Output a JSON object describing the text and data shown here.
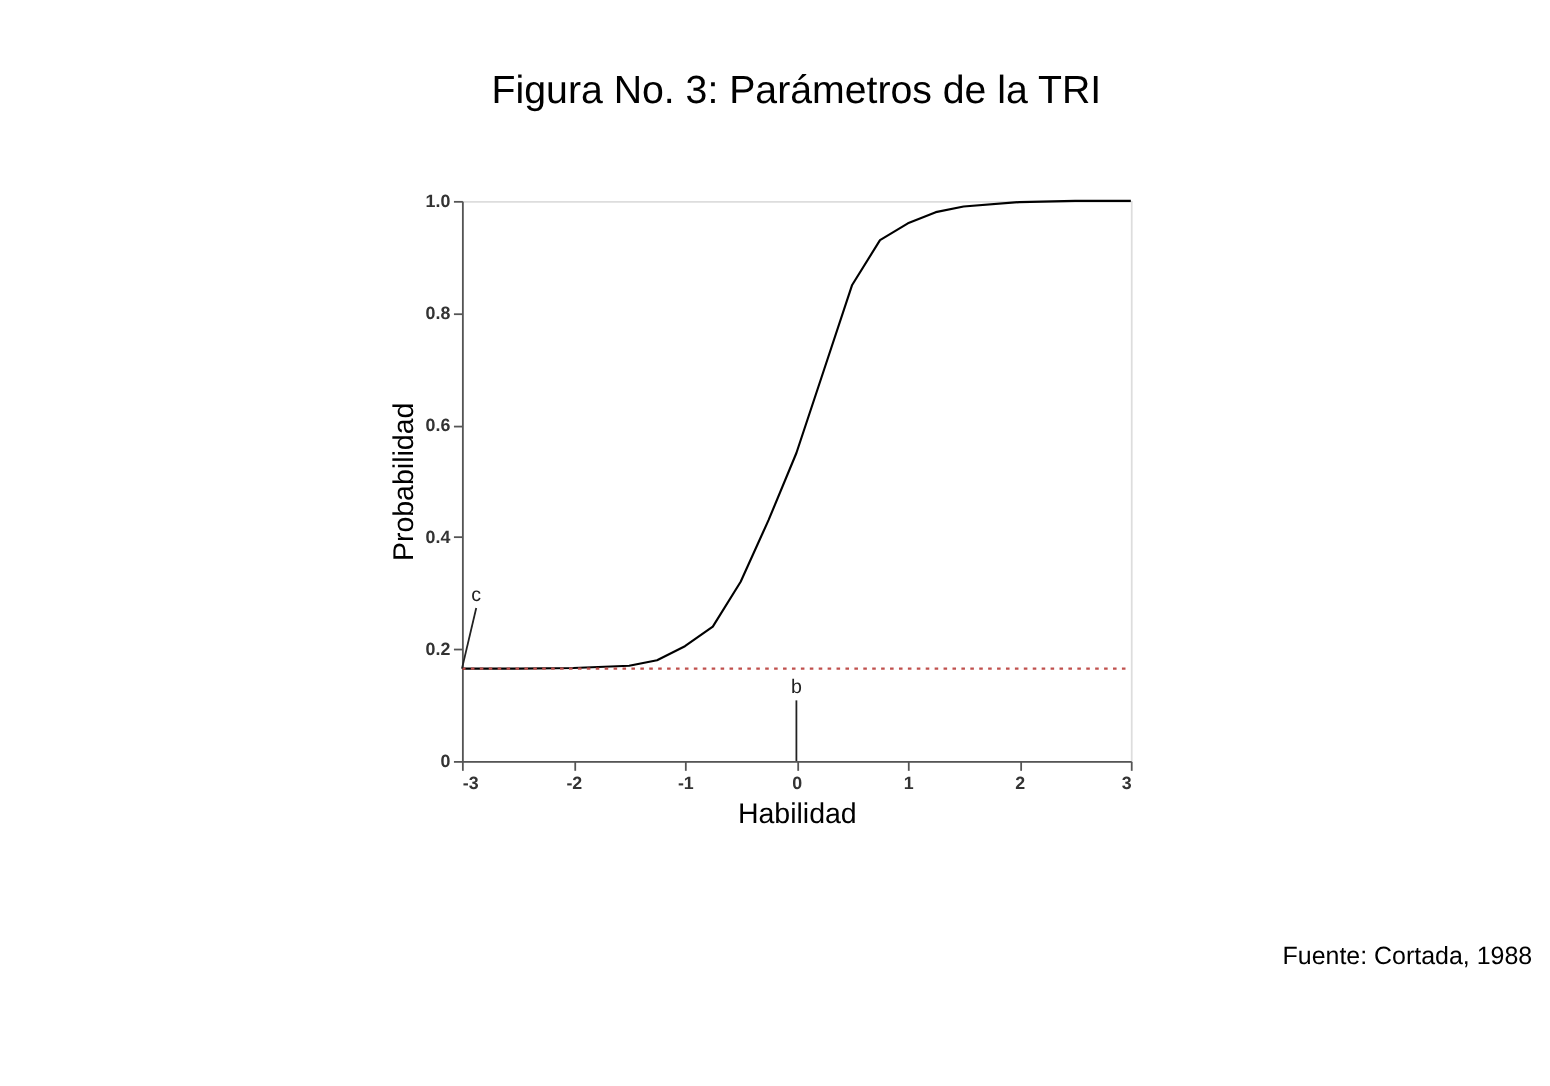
{
  "chart_data": {
    "type": "line",
    "title": "Figura No. 3: Parámetros de la TRI",
    "xlabel": "Habilidad",
    "ylabel": "Probabilidad",
    "x": [
      -3,
      -2.5,
      -2,
      -1.5,
      -1.25,
      -1,
      -0.75,
      -0.5,
      -0.25,
      0,
      0.25,
      0.5,
      0.75,
      1,
      1.25,
      1.5,
      2,
      2.5,
      3
    ],
    "series": [
      {
        "color": "#000000",
        "values": [
          0.165,
          0.165,
          0.166,
          0.17,
          0.18,
          0.205,
          0.24,
          0.32,
          0.43,
          0.55,
          0.7,
          0.85,
          0.93,
          0.96,
          0.98,
          0.99,
          0.998,
          1.0,
          1.0
        ]
      }
    ],
    "xlim": [
      -3,
      3
    ],
    "ylim": [
      0,
      1
    ],
    "xticks": [
      -3,
      -2,
      -1,
      0,
      1,
      2,
      3
    ],
    "yticks": [
      0,
      0.2,
      0.4,
      0.6,
      0.8,
      {
        "value": 1,
        "label": "1.0"
      }
    ],
    "ref_lines": [
      {
        "axis": "y",
        "value": 0.165,
        "color": "#c0504d",
        "line_style": "dotted"
      }
    ],
    "annotations": [
      {
        "text": "c",
        "x": -3,
        "y": 0.165
      },
      {
        "text": "b",
        "x": 0
      },
      "Fuente: Cortada, 1988"
    ],
    "grid": false,
    "marker": "none",
    "line_style": "solid"
  }
}
